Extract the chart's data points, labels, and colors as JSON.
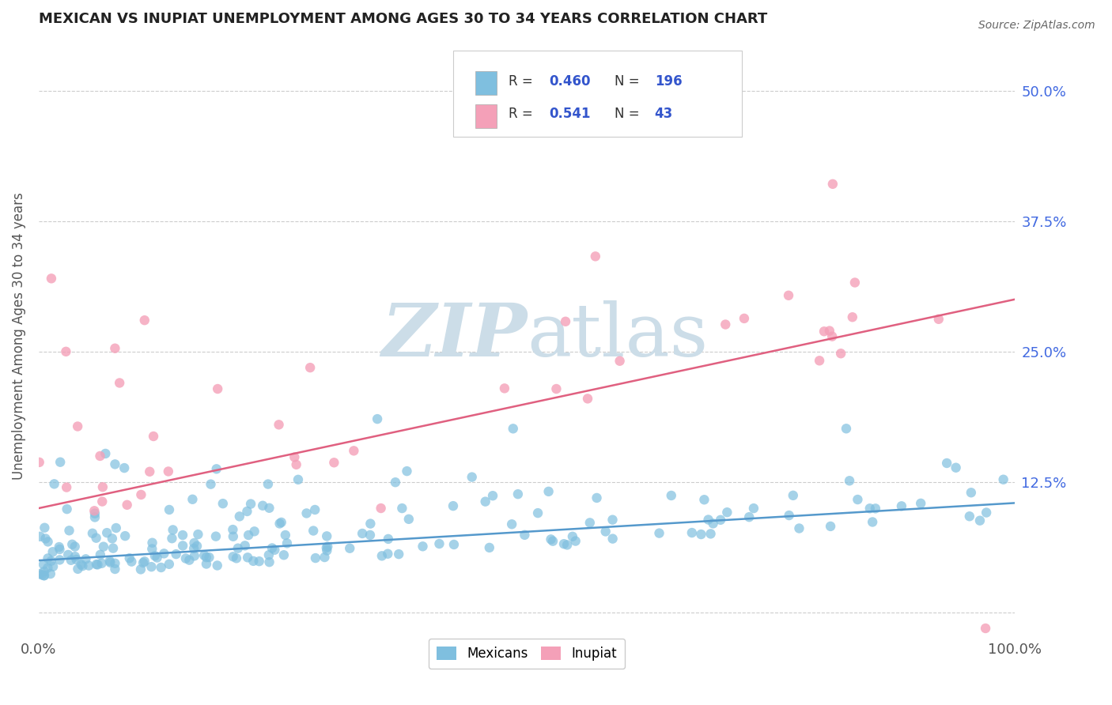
{
  "title": "MEXICAN VS INUPIAT UNEMPLOYMENT AMONG AGES 30 TO 34 YEARS CORRELATION CHART",
  "source_text": "Source: ZipAtlas.com",
  "ylabel": "Unemployment Among Ages 30 to 34 years",
  "xlim": [
    0,
    100
  ],
  "ylim": [
    -2,
    55
  ],
  "ytick_vals": [
    0,
    12.5,
    25.0,
    37.5,
    50.0
  ],
  "ytick_labels": [
    "",
    "12.5%",
    "25.0%",
    "37.5%",
    "50.0%"
  ],
  "background_color": "#ffffff",
  "grid_color": "#cccccc",
  "blue_color": "#7fbfdf",
  "pink_color": "#f4a0b8",
  "blue_line_color": "#5599cc",
  "pink_line_color": "#e06080",
  "title_color": "#222222",
  "legend_text_color": "#3355cc",
  "mexicans_label": "Mexicans",
  "inupiat_label": "Inupiat",
  "watermark_color": "#ccdde8",
  "mex_line_start": 5.0,
  "mex_line_end": 10.5,
  "inu_line_start": 10.0,
  "inu_line_end": 30.0
}
